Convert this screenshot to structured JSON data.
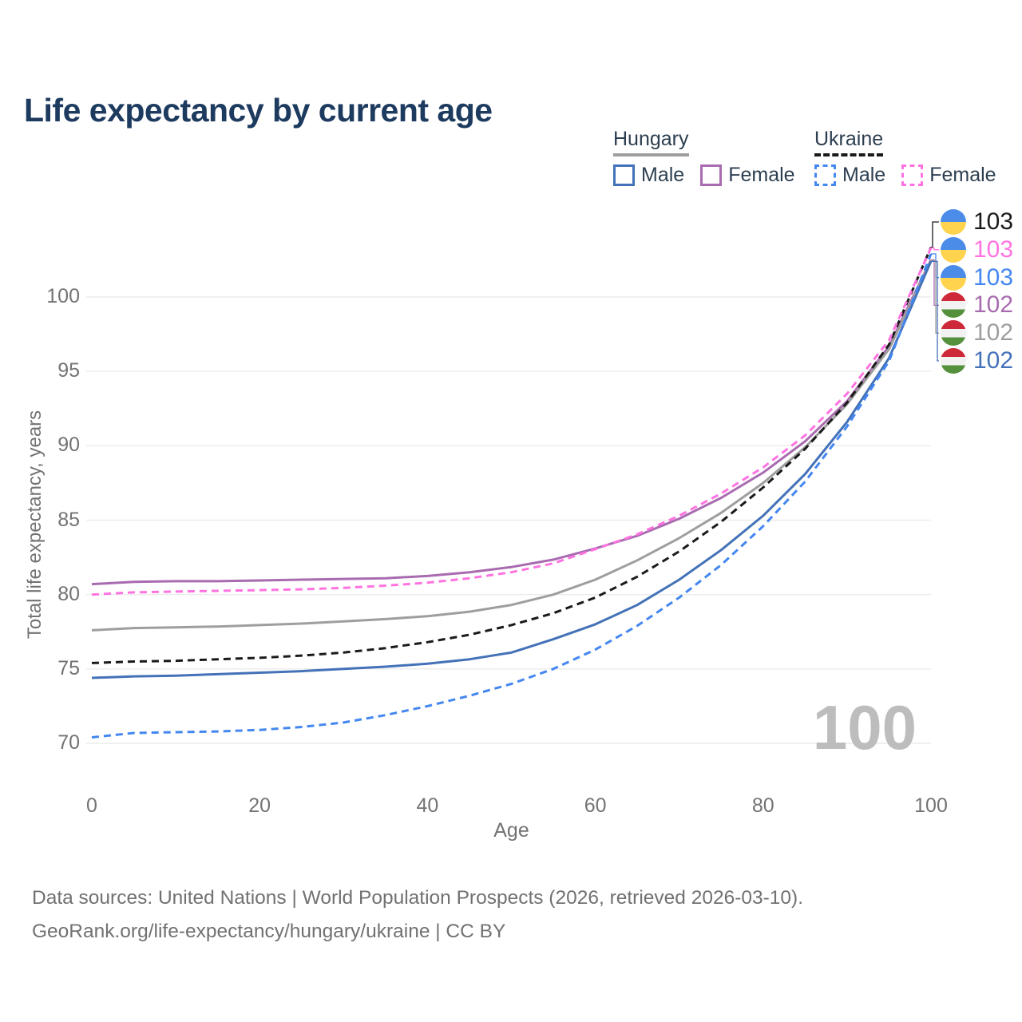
{
  "title": "Life expectancy by current age",
  "legend": {
    "groups": [
      {
        "country": "Hungary",
        "line_style": "solid",
        "underline_color": "#9e9e9e",
        "items": [
          {
            "label": "Male",
            "color": "#4472b8",
            "dashed": false
          },
          {
            "label": "Female",
            "color": "#a86bb0",
            "dashed": false
          }
        ]
      },
      {
        "country": "Ukraine",
        "line_style": "dashed",
        "underline_color": "#1a1a1a",
        "items": [
          {
            "label": "Male",
            "color": "#4487f0",
            "dashed": true
          },
          {
            "label": "Female",
            "color": "#ff73e1",
            "dashed": true
          }
        ]
      }
    ]
  },
  "watermark": "100",
  "chart_data": {
    "type": "line",
    "title": "Life expectancy by current age",
    "xlabel": "Age",
    "ylabel": "Total life expectancy, years",
    "x_ticks": [
      0,
      20,
      40,
      60,
      80,
      100
    ],
    "y_ticks": [
      70,
      75,
      80,
      85,
      90,
      95,
      100
    ],
    "xlim": [
      0,
      100
    ],
    "ylim": [
      70,
      103.5
    ],
    "grid": "horizontal",
    "legend_position": "top-right",
    "x": [
      0,
      5,
      10,
      15,
      20,
      25,
      30,
      35,
      40,
      45,
      50,
      55,
      60,
      65,
      70,
      75,
      80,
      85,
      90,
      95,
      100
    ],
    "series": [
      {
        "country": "Ukraine",
        "sex": "Total",
        "color": "#1a1a1a",
        "dashed": true,
        "flag": "ukraine",
        "end_label": "103",
        "values": [
          75.4,
          75.5,
          75.55,
          75.65,
          75.75,
          75.9,
          76.1,
          76.4,
          76.8,
          77.3,
          77.95,
          78.75,
          79.8,
          81.2,
          82.9,
          84.9,
          87.2,
          89.8,
          92.9,
          96.8,
          103.35
        ]
      },
      {
        "country": "Ukraine",
        "sex": "Female",
        "color": "#ff73e1",
        "dashed": true,
        "flag": "ukraine",
        "end_label": "103",
        "values": [
          80.0,
          80.15,
          80.2,
          80.25,
          80.3,
          80.35,
          80.45,
          80.6,
          80.8,
          81.1,
          81.5,
          82.1,
          83.05,
          84.05,
          85.3,
          86.8,
          88.55,
          90.7,
          93.5,
          97.1,
          103.3
        ]
      },
      {
        "country": "Ukraine",
        "sex": "Male",
        "color": "#4487f0",
        "dashed": true,
        "flag": "ukraine",
        "end_label": "103",
        "values": [
          70.4,
          70.7,
          70.75,
          70.8,
          70.9,
          71.1,
          71.4,
          71.9,
          72.5,
          73.2,
          74.0,
          75.0,
          76.3,
          77.9,
          79.8,
          82.0,
          84.6,
          87.6,
          91.3,
          95.7,
          102.9
        ]
      },
      {
        "country": "Hungary",
        "sex": "Female",
        "color": "#a86bb0",
        "dashed": false,
        "flag": "hungary",
        "end_label": "102",
        "values": [
          80.7,
          80.85,
          80.9,
          80.9,
          80.95,
          81.0,
          81.05,
          81.1,
          81.25,
          81.5,
          81.85,
          82.35,
          83.1,
          83.95,
          85.1,
          86.5,
          88.2,
          90.3,
          93.0,
          96.7,
          102.5
        ]
      },
      {
        "country": "Hungary",
        "sex": "Total",
        "color": "#9e9e9e",
        "dashed": false,
        "flag": "hungary",
        "end_label": "102",
        "values": [
          77.6,
          77.75,
          77.8,
          77.85,
          77.95,
          78.05,
          78.2,
          78.35,
          78.55,
          78.85,
          79.3,
          80.0,
          81.0,
          82.3,
          83.8,
          85.5,
          87.5,
          89.9,
          92.8,
          96.5,
          102.45
        ]
      },
      {
        "country": "Hungary",
        "sex": "Male",
        "color": "#4472b8",
        "dashed": false,
        "flag": "hungary",
        "end_label": "102",
        "values": [
          74.4,
          74.5,
          74.55,
          74.65,
          74.75,
          74.85,
          75.0,
          75.15,
          75.35,
          75.65,
          76.1,
          77.0,
          78.0,
          79.3,
          81.0,
          83.0,
          85.3,
          88.1,
          91.6,
          95.9,
          102.4
        ]
      }
    ]
  },
  "footer": {
    "line1": "Data sources: United Nations | World Population Prospects (2026, retrieved 2026-03-10).",
    "line2": "GeoRank.org/life-expectancy/hungary/ukraine | CC BY"
  }
}
